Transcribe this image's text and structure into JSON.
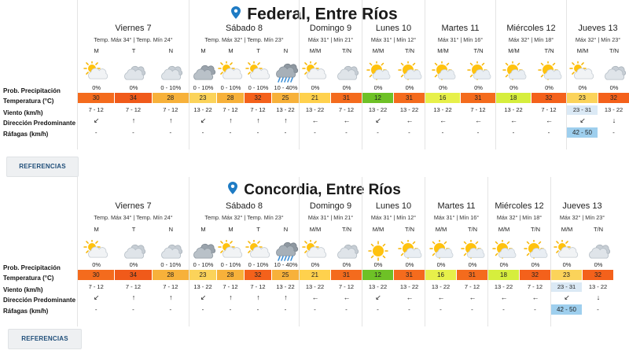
{
  "colors": {
    "t21": "#ffd14d",
    "t23": "#fbd35a",
    "t28": "#f7b13a",
    "t30": "#f46b1d",
    "t32": "#f4611b",
    "t34": "#f05a1a",
    "t12": "#6ec126",
    "t16": "#e7f04a",
    "t18": "#d6ee3d",
    "gust": "#9ecfee",
    "wind_highlight": "#dbe9f5",
    "pin": "#1e7bc4"
  },
  "row_labels": [
    "Prob. Precipitación",
    "Temperatura (°C)",
    "Viento (km/h)",
    "Dirección Predominante",
    "Ráfagas (km/h)"
  ],
  "reference_button_label": "REFERENCIAS",
  "locations": [
    {
      "title": "Federal, Entre Ríos",
      "days": [
        {
          "name": "Viernes 7",
          "summary": "Temp. Máx 34° | Temp. Mín 24°",
          "periods": [
            {
              "label": "M",
              "icon": "partly-cloudy",
              "precip": "0%",
              "temp": "30",
              "tc": "t30",
              "wind": "7 - 12",
              "dir": "↙",
              "gust": "-"
            },
            {
              "label": "T",
              "icon": "cloudy",
              "precip": "0%",
              "temp": "34",
              "tc": "t34",
              "wind": "7 - 12",
              "dir": "↑",
              "gust": "-"
            },
            {
              "label": "N",
              "icon": "cloudy",
              "precip": "0 - 10%",
              "temp": "28",
              "tc": "t28",
              "wind": "7 - 12",
              "dir": "↑",
              "gust": "-"
            }
          ]
        },
        {
          "name": "Sábado 8",
          "summary": "Temp. Máx 32° | Temp. Mín 23°",
          "periods": [
            {
              "label": "M",
              "icon": "cloudy-dark",
              "precip": "0 - 10%",
              "temp": "23",
              "tc": "t23",
              "wind": "13 - 22",
              "dir": "↙",
              "gust": "-"
            },
            {
              "label": "M",
              "icon": "partly-cloudy",
              "precip": "0 - 10%",
              "temp": "28",
              "tc": "t28",
              "wind": "7 - 12",
              "dir": "↑",
              "gust": "-"
            },
            {
              "label": "T",
              "icon": "partly-cloudy",
              "precip": "0 - 10%",
              "temp": "32",
              "tc": "t32",
              "wind": "7 - 12",
              "dir": "↑",
              "gust": "-"
            },
            {
              "label": "N",
              "icon": "rain",
              "precip": "10 - 40%",
              "temp": "25",
              "tc": "t28",
              "wind": "13 - 22",
              "dir": "↑",
              "gust": "-"
            }
          ]
        },
        {
          "name": "Domingo 9",
          "summary": "Máx 31° | Mín 21°",
          "periods": [
            {
              "label": "M/M",
              "icon": "partly-cloudy",
              "precip": "0%",
              "temp": "21",
              "tc": "t21",
              "wind": "13 - 22",
              "dir": "←",
              "gust": "-"
            },
            {
              "label": "T/N",
              "icon": "cloudy",
              "precip": "0%",
              "temp": "31",
              "tc": "t30",
              "wind": "7 - 12",
              "dir": "←",
              "gust": "-"
            }
          ]
        },
        {
          "name": "Lunes 10",
          "summary": "Máx 31° | Mín 12°",
          "periods": [
            {
              "label": "M/M",
              "icon": "sun-cloud",
              "precip": "0%",
              "temp": "12",
              "tc": "t12",
              "wind": "13 - 22",
              "dir": "↙",
              "gust": "-"
            },
            {
              "label": "T/N",
              "icon": "sun-cloud",
              "precip": "0%",
              "temp": "31",
              "tc": "t30",
              "wind": "13 - 22",
              "dir": "←",
              "gust": "-"
            }
          ]
        },
        {
          "name": "Martes 11",
          "summary": "Máx 31° | Mín 16°",
          "periods": [
            {
              "label": "M/M",
              "icon": "sun-cloud",
              "precip": "0%",
              "temp": "16",
              "tc": "t16",
              "wind": "13 - 22",
              "dir": "←",
              "gust": "-"
            },
            {
              "label": "T/N",
              "icon": "sun-cloud",
              "precip": "0%",
              "temp": "31",
              "tc": "t30",
              "wind": "7 - 12",
              "dir": "←",
              "gust": "-"
            }
          ]
        },
        {
          "name": "Miércoles 12",
          "summary": "Máx 32° | Mín 18°",
          "periods": [
            {
              "label": "M/M",
              "icon": "sun-cloud",
              "precip": "0%",
              "temp": "18",
              "tc": "t18",
              "wind": "13 - 22",
              "dir": "←",
              "gust": "-"
            },
            {
              "label": "T/N",
              "icon": "sun-cloud",
              "precip": "0%",
              "temp": "32",
              "tc": "t32",
              "wind": "7 - 12",
              "dir": "←",
              "gust": "-"
            }
          ]
        },
        {
          "name": "Jueves 13",
          "summary": "Máx 32° | Mín 23°",
          "periods": [
            {
              "label": "M/M",
              "icon": "partly-cloudy",
              "precip": "0%",
              "temp": "23",
              "tc": "t23",
              "wind": "23 - 31",
              "dir": "↙",
              "gust": "42 - 50",
              "hl": true
            },
            {
              "label": "T/N",
              "icon": "cloudy",
              "precip": "0%",
              "temp": "32",
              "tc": "t32",
              "wind": "13 - 22",
              "dir": "↓",
              "gust": "-"
            }
          ]
        }
      ]
    },
    {
      "title": "Concordia, Entre Ríos",
      "days": [
        {
          "name": "Viernes 7",
          "summary": "Temp. Máx 34° | Temp. Mín 24°",
          "periods": [
            {
              "label": "M",
              "icon": "partly-cloudy",
              "precip": "0%",
              "temp": "30",
              "tc": "t30",
              "wind": "7 - 12",
              "dir": "↙",
              "gust": "-"
            },
            {
              "label": "T",
              "icon": "cloudy",
              "precip": "0%",
              "temp": "34",
              "tc": "t34",
              "wind": "7 - 12",
              "dir": "↑",
              "gust": "-"
            },
            {
              "label": "N",
              "icon": "cloudy",
              "precip": "0 - 10%",
              "temp": "28",
              "tc": "t28",
              "wind": "7 - 12",
              "dir": "↑",
              "gust": "-"
            }
          ]
        },
        {
          "name": "Sábado 8",
          "summary": "Temp. Máx 32° | Temp. Mín 23°",
          "periods": [
            {
              "label": "M",
              "icon": "cloudy-dark",
              "precip": "0 - 10%",
              "temp": "23",
              "tc": "t23",
              "wind": "13 - 22",
              "dir": "↙",
              "gust": "-"
            },
            {
              "label": "M",
              "icon": "partly-cloudy",
              "precip": "0 - 10%",
              "temp": "28",
              "tc": "t28",
              "wind": "7 - 12",
              "dir": "↑",
              "gust": "-"
            },
            {
              "label": "T",
              "icon": "partly-cloudy",
              "precip": "0 - 10%",
              "temp": "32",
              "tc": "t32",
              "wind": "7 - 12",
              "dir": "↑",
              "gust": "-"
            },
            {
              "label": "N",
              "icon": "rain",
              "precip": "10 - 40%",
              "temp": "25",
              "tc": "t28",
              "wind": "13 - 22",
              "dir": "↑",
              "gust": "-"
            }
          ]
        },
        {
          "name": "Domingo 9",
          "summary": "Máx 31° | Mín 21°",
          "periods": [
            {
              "label": "M/M",
              "icon": "partly-cloudy",
              "precip": "0%",
              "temp": "21",
              "tc": "t21",
              "wind": "13 - 22",
              "dir": "←",
              "gust": "-"
            },
            {
              "label": "T/N",
              "icon": "cloudy",
              "precip": "0%",
              "temp": "31",
              "tc": "t30",
              "wind": "7 - 12",
              "dir": "←",
              "gust": "-"
            }
          ]
        },
        {
          "name": "Lunes 10",
          "summary": "Máx 31° | Mín 12°",
          "periods": [
            {
              "label": "M/M",
              "icon": "sun",
              "precip": "0%",
              "temp": "12",
              "tc": "t12",
              "wind": "13 - 22",
              "dir": "↙",
              "gust": "-"
            },
            {
              "label": "T/N",
              "icon": "sun-cloud",
              "precip": "0%",
              "temp": "31",
              "tc": "t30",
              "wind": "13 - 22",
              "dir": "←",
              "gust": "-"
            }
          ]
        },
        {
          "name": "Martes 11",
          "summary": "Máx 31° | Mín 16°",
          "periods": [
            {
              "label": "M/M",
              "icon": "sun-cloud",
              "precip": "0%",
              "temp": "16",
              "tc": "t16",
              "wind": "13 - 22",
              "dir": "←",
              "gust": "-"
            },
            {
              "label": "T/N",
              "icon": "sun-cloud",
              "precip": "0%",
              "temp": "31",
              "tc": "t30",
              "wind": "7 - 12",
              "dir": "←",
              "gust": "-"
            }
          ]
        },
        {
          "name": "Miércoles 12",
          "summary": "Máx 32° | Mín 18°",
          "periods": [
            {
              "label": "M/M",
              "icon": "sun-cloud",
              "precip": "0%",
              "temp": "18",
              "tc": "t18",
              "wind": "13 - 22",
              "dir": "←",
              "gust": "-"
            },
            {
              "label": "T/N",
              "icon": "sun-cloud",
              "precip": "0%",
              "temp": "32",
              "tc": "t32",
              "wind": "7 - 12",
              "dir": "←",
              "gust": "-"
            }
          ]
        },
        {
          "name": "Jueves 13",
          "summary": "Máx 32° | Mín 23°",
          "periods": [
            {
              "label": "M/M",
              "icon": "partly-cloudy",
              "precip": "0%",
              "temp": "23",
              "tc": "t23",
              "wind": "23 - 31",
              "dir": "↙",
              "gust": "42 - 50",
              "hl": true
            },
            {
              "label": "T/N",
              "icon": "cloudy",
              "precip": "0%",
              "temp": "32",
              "tc": "t32",
              "wind": "13 - 22",
              "dir": "↓",
              "gust": "-"
            }
          ]
        }
      ]
    }
  ]
}
